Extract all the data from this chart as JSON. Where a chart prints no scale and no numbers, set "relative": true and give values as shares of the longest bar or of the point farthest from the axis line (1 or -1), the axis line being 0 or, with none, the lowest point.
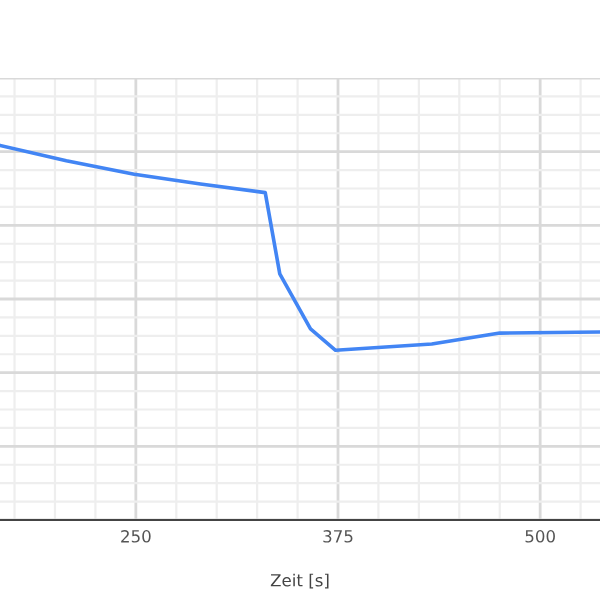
{
  "chart_data": {
    "type": "line",
    "xlabel": "Zeit [s]",
    "relative": true,
    "x": [
      166,
      207,
      249,
      290,
      330,
      339,
      358,
      373.5,
      433,
      475,
      537
    ],
    "series": [
      {
        "color": "#4285f4",
        "values": [
          1,
          0.959,
          0.923,
          0.897,
          0.874,
          0.657,
          0.51,
          0.453,
          0.47,
          0.499,
          0.502
        ]
      }
    ],
    "xlim": [
      166,
      537
    ],
    "xticks": [
      250,
      375,
      500
    ],
    "grid": true,
    "marker": "none",
    "line_style": "solid"
  }
}
